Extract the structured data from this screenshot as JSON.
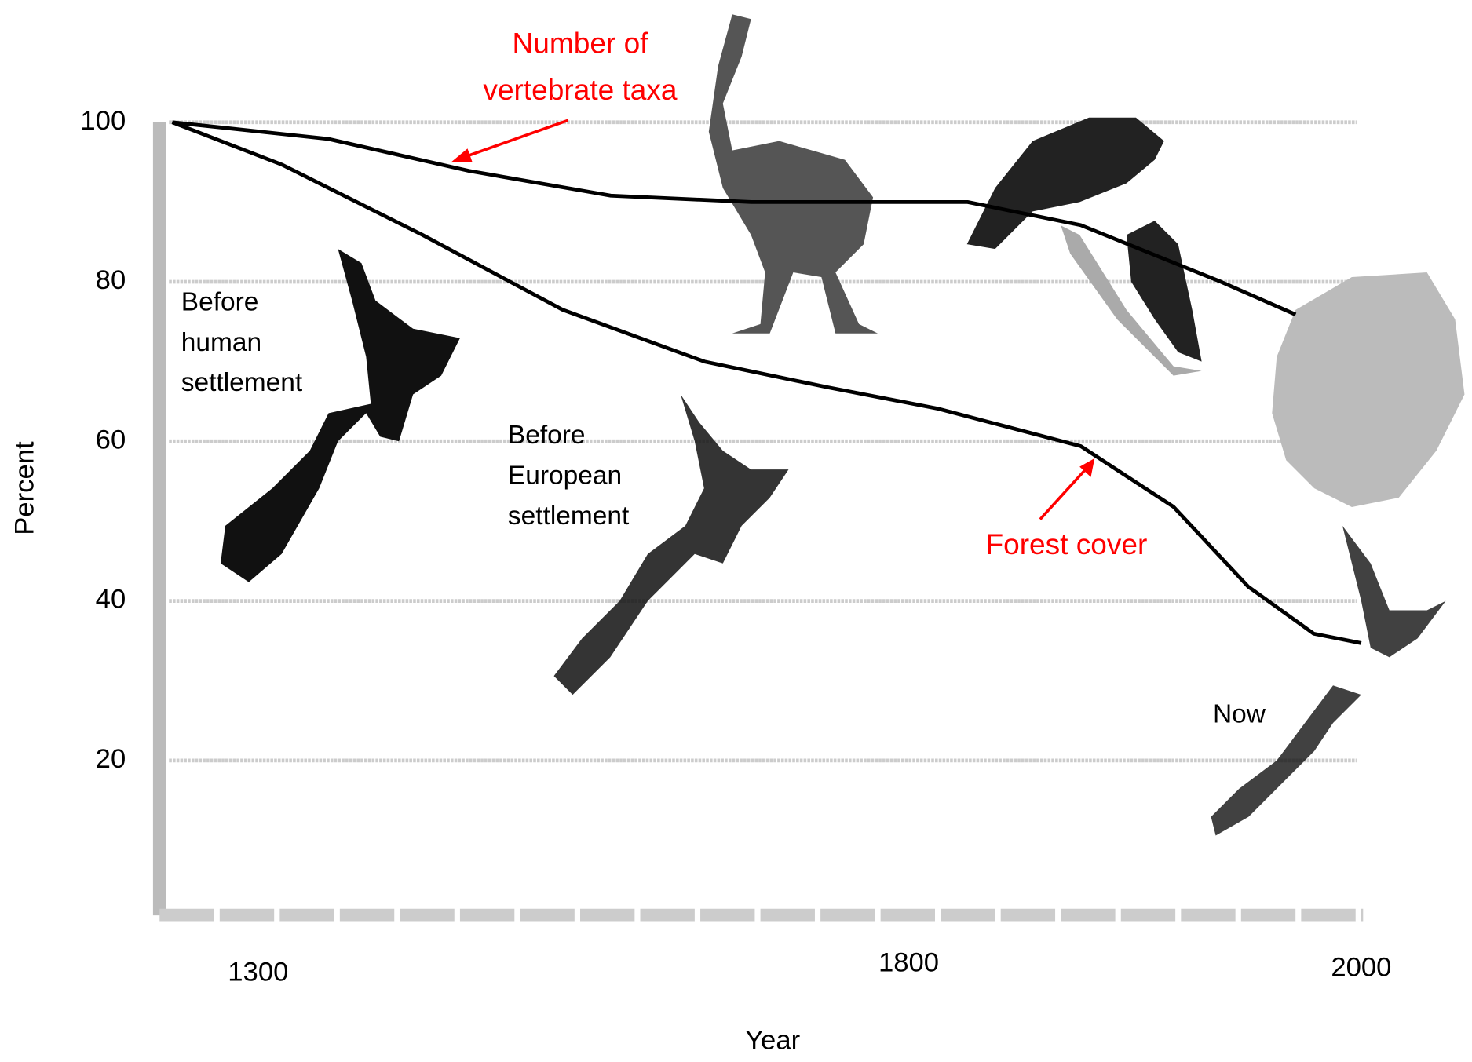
{
  "chart_data": {
    "type": "line",
    "x_label": "Year",
    "y_label": "Percent",
    "ylim": [
      0,
      100
    ],
    "yticks": [
      20,
      40,
      60,
      80,
      100
    ],
    "xticks": [
      1300,
      1800,
      2000
    ],
    "grid": true,
    "series": [
      {
        "color": "#000000",
        "x": [
          1234,
          1354,
          1462,
          1571,
          1679,
          1826,
          1876,
          1938,
          1971
        ],
        "values": [
          100,
          97.9,
          93.9,
          90.8,
          90,
          90,
          87.1,
          80,
          75.9
        ]
      },
      {
        "color": "#000000",
        "x": [
          1234,
          1318,
          1426,
          1534,
          1643,
          1737,
          1813,
          1876,
          1917,
          1950,
          1979,
          2000
        ],
        "values": [
          100,
          94.7,
          85.9,
          76.5,
          70,
          66.8,
          64.1,
          59.4,
          51.8,
          41.8,
          35.9,
          34.7
        ]
      }
    ],
    "annotations": [
      {
        "lines": [
          "Number of",
          "vertebrate taxa"
        ],
        "color": "#ff0000"
      },
      {
        "lines": [
          "Forest cover"
        ],
        "color": "#ff0000"
      },
      {
        "lines": [
          "Before",
          "human",
          "settlement"
        ],
        "color": "#000000"
      },
      {
        "lines": [
          "Before",
          "European",
          "settlement"
        ],
        "color": "#000000"
      },
      {
        "lines": [
          "Now"
        ],
        "color": "#000000"
      }
    ]
  }
}
